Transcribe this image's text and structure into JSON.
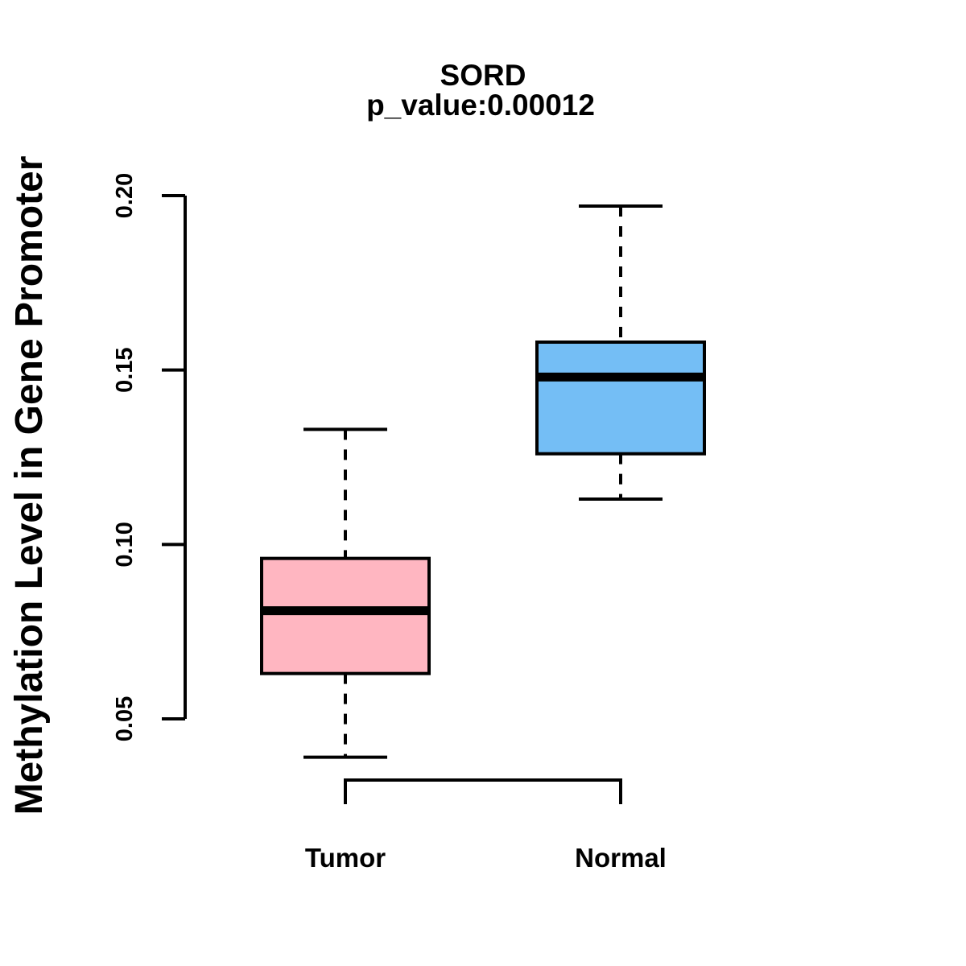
{
  "figure": {
    "gene": "SORD",
    "p_value_text": "p_value:0.00012"
  },
  "chart_data": {
    "type": "boxplot",
    "title": "SORD",
    "subtitle": "p_value:0.00012",
    "ylabel": "Methylation Level in Gene Promoter",
    "xlabel": "",
    "categories": [
      "Tumor",
      "Normal"
    ],
    "y_axis": {
      "ticks": [
        0.05,
        0.1,
        0.15,
        0.2
      ],
      "tick_labels": [
        "0.05",
        "0.10",
        "0.15",
        "0.20"
      ],
      "range": [
        0.05,
        0.2
      ]
    },
    "grid": false,
    "legend": "none",
    "colors": {
      "box_border": "#000000",
      "median": "#000000",
      "whisker": "#000000",
      "axis": "#000000",
      "text": "#000000",
      "background": "#ffffff"
    },
    "series": [
      {
        "name": "Tumor",
        "color": "#FFB6C1",
        "whisker_low": 0.039,
        "q1": 0.063,
        "median": 0.081,
        "q3": 0.096,
        "whisker_high": 0.133
      },
      {
        "name": "Normal",
        "color": "#74BEF5",
        "whisker_low": 0.113,
        "q1": 0.126,
        "median": 0.148,
        "q3": 0.158,
        "whisker_high": 0.197
      }
    ]
  }
}
